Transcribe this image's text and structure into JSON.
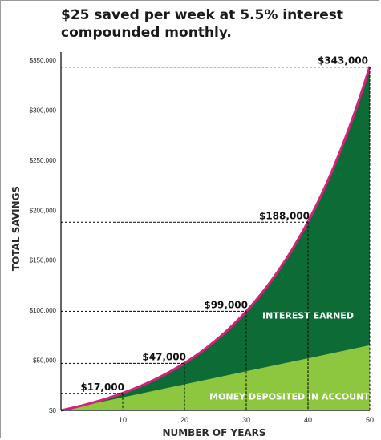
{
  "chart_data": {
    "type": "area",
    "title": "$25 saved per week at 5.5% interest\ncompounded monthly.",
    "xlabel": "NUMBER OF YEARS",
    "ylabel": "TOTAL SAVINGS",
    "xlim": [
      0,
      50
    ],
    "ylim": [
      0,
      350000
    ],
    "x_ticks": [
      "10",
      "20",
      "30",
      "40",
      "50"
    ],
    "y_ticks": [
      "$0",
      "$50,000",
      "$100,000",
      "$150,000",
      "$200,000",
      "$250,000",
      "$300,000",
      "$350,000"
    ],
    "grid": false,
    "weekly_deposit": 25,
    "annual_rate": 0.055,
    "compounding": "monthly",
    "series": [
      {
        "name": "MONEY DEPOSITED IN ACCOUNT",
        "x": [
          0,
          10,
          20,
          30,
          40,
          50
        ],
        "y": [
          0,
          13000,
          26000,
          39000,
          52000,
          65000
        ]
      },
      {
        "name": "INTEREST EARNED",
        "x": [
          0,
          10,
          20,
          30,
          40,
          50
        ],
        "y": [
          0,
          17000,
          47000,
          99000,
          188000,
          343000
        ]
      }
    ],
    "annotations": [
      {
        "x": 10,
        "y": 17000,
        "text": "$17,000"
      },
      {
        "x": 20,
        "y": 47000,
        "text": "$47,000"
      },
      {
        "x": 30,
        "y": 99000,
        "text": "$99,000"
      },
      {
        "x": 40,
        "y": 188000,
        "text": "$188,000"
      },
      {
        "x": 50,
        "y": 343000,
        "text": "$343,000"
      }
    ],
    "colors": {
      "deposits": "#8dc63f",
      "interest": "#0d6b35",
      "curve": "#d6207a",
      "guides": "#000000"
    }
  }
}
